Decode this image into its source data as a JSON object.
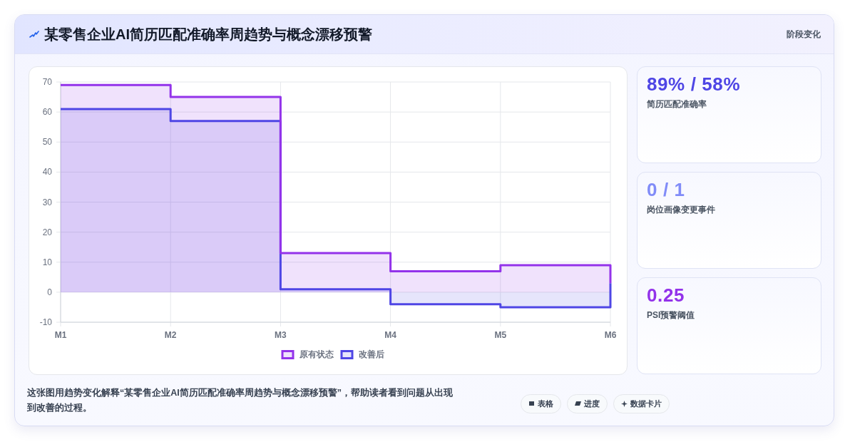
{
  "chart_data": [
    {
      "type": "area",
      "title": "某零售企业AI简历匹配准确率周趋势与概念漂移预警",
      "categories": [
        "M1",
        "M2",
        "M3",
        "M4",
        "M5",
        "M6"
      ],
      "series": [
        {
          "name": "原有状态",
          "color": "#9333ea",
          "x": [
            "M1",
            "M2",
            "M2",
            "M3",
            "M3",
            "M4",
            "M4",
            "M5",
            "M5",
            "M6",
            "M6"
          ],
          "values": [
            69,
            69,
            65,
            65,
            13,
            13,
            7,
            7,
            9,
            9,
            3
          ]
        },
        {
          "name": "改善后",
          "color": "#4f46e5",
          "x": [
            "M1",
            "M2",
            "M2",
            "M3",
            "M3",
            "M4",
            "M4",
            "M5",
            "M5",
            "M6",
            "M6"
          ],
          "values": [
            61,
            61,
            57,
            57,
            1,
            1,
            -4,
            -4,
            -5,
            -5,
            3
          ]
        }
      ],
      "ylim": [
        -10,
        70
      ],
      "yticks": [
        -10,
        0,
        10,
        20,
        30,
        40,
        50,
        60,
        70
      ],
      "grid": true,
      "legend": "bottom",
      "annotations": [
        "这张图用趋势变化解释“某零售企业AI简历匹配准确率周趋势与概念漂移预警”，帮助读者看到问题从出现到改善的过程。",
        "表格",
        "进度",
        "数据卡片"
      ]
    },
    {
      "type": "other",
      "title": "阶段变化",
      "annotations": [
        "89% / 58%",
        "简历匹配准确率",
        "0 / 1",
        "岗位画像变更事件",
        "0.25",
        "PSI预警阈值"
      ]
    }
  ]
}
